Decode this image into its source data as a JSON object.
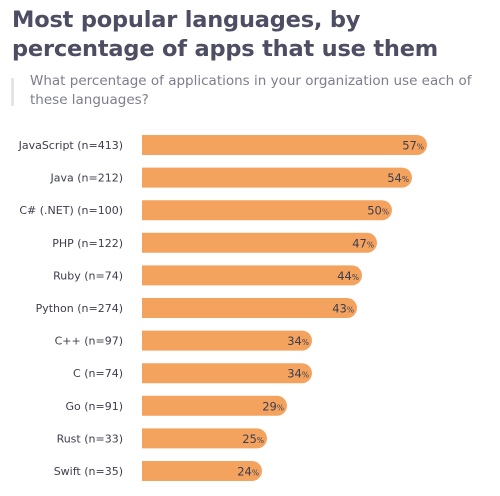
{
  "chart_data": {
    "type": "bar",
    "orientation": "horizontal",
    "title": "Most popular languages, by percentage of apps that use them",
    "subtitle": "What percentage of applications in your organization use each of these languages?",
    "categories": [
      "JavaScript (n=413)",
      "Java (n=212)",
      "C# (.NET) (n=100)",
      "PHP (n=122)",
      "Ruby (n=74)",
      "Python (n=274)",
      "C++ (n=97)",
      "C (n=74)",
      "Go (n=91)",
      "Rust (n=33)",
      "Swift (n=35)"
    ],
    "values": [
      57,
      54,
      50,
      47,
      44,
      43,
      34,
      34,
      29,
      25,
      24
    ],
    "value_suffix": "%",
    "xlim": [
      0,
      100
    ],
    "xlabel": "",
    "ylabel": "",
    "grid": false,
    "legend": "none",
    "colors": {
      "bar": "#f4a35f",
      "label_text": "#3d3d4f",
      "value_text": "#3d3d4f"
    }
  }
}
